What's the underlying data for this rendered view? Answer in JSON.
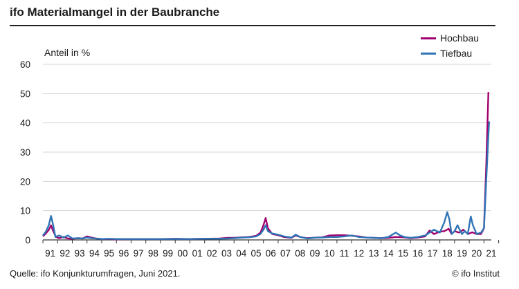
{
  "header": {
    "title": "ifo Materialmangel in der Baubranche"
  },
  "footer": {
    "source": "Quelle: ifo Konjunkturumfragen, Juni 2021.",
    "credit": "© ifo Institut"
  },
  "chart_data": {
    "type": "line",
    "title": "ifo Materialmangel in der Baubranche",
    "ylabel": "Anteil in %",
    "xlabel": "",
    "ylim": [
      0,
      60
    ],
    "xlim": [
      1991.0,
      2021.5
    ],
    "yticks": [
      "0",
      "10",
      "20",
      "30",
      "40",
      "50",
      "60"
    ],
    "yticks_values": [
      0,
      10,
      20,
      30,
      40,
      50,
      60
    ],
    "xticks": [
      "91",
      "92",
      "93",
      "94",
      "95",
      "96",
      "97",
      "98",
      "99",
      "00",
      "01",
      "02",
      "03",
      "04",
      "05",
      "06",
      "07",
      "08",
      "09",
      "10",
      "11",
      "12",
      "13",
      "14",
      "15",
      "16",
      "17",
      "18",
      "19",
      "20",
      "21"
    ],
    "grid": "horizontal",
    "legend_position": "top-right",
    "series": [
      {
        "name": "Hochbau",
        "color": "#a0006e",
        "points": [
          [
            1991.0,
            1.2
          ],
          [
            1991.2,
            2.2
          ],
          [
            1991.4,
            3.4
          ],
          [
            1991.55,
            5.0
          ],
          [
            1991.7,
            3.0
          ],
          [
            1991.9,
            1.0
          ],
          [
            1992.1,
            0.6
          ],
          [
            1992.4,
            1.0
          ],
          [
            1992.7,
            0.5
          ],
          [
            1993.0,
            0.4
          ],
          [
            1993.4,
            0.6
          ],
          [
            1993.7,
            0.5
          ],
          [
            1994.0,
            1.2
          ],
          [
            1994.3,
            0.8
          ],
          [
            1994.6,
            0.5
          ],
          [
            1995.0,
            0.3
          ],
          [
            1995.5,
            0.3
          ],
          [
            1996.0,
            0.2
          ],
          [
            1997.0,
            0.3
          ],
          [
            1998.0,
            0.3
          ],
          [
            1999.0,
            0.3
          ],
          [
            2000.0,
            0.4
          ],
          [
            2001.0,
            0.3
          ],
          [
            2002.0,
            0.4
          ],
          [
            2003.0,
            0.5
          ],
          [
            2003.6,
            0.7
          ],
          [
            2004.0,
            0.7
          ],
          [
            2004.6,
            0.9
          ],
          [
            2005.0,
            1.0
          ],
          [
            2005.5,
            1.4
          ],
          [
            2005.8,
            2.5
          ],
          [
            2006.0,
            5.0
          ],
          [
            2006.15,
            7.5
          ],
          [
            2006.3,
            4.0
          ],
          [
            2006.6,
            2.0
          ],
          [
            2007.0,
            1.6
          ],
          [
            2007.4,
            1.0
          ],
          [
            2007.9,
            0.7
          ],
          [
            2008.2,
            1.5
          ],
          [
            2008.5,
            1.0
          ],
          [
            2009.0,
            0.6
          ],
          [
            2009.6,
            0.8
          ],
          [
            2010.0,
            0.9
          ],
          [
            2010.5,
            1.5
          ],
          [
            2011.0,
            1.6
          ],
          [
            2011.5,
            1.6
          ],
          [
            2012.0,
            1.4
          ],
          [
            2012.5,
            1.2
          ],
          [
            2013.0,
            0.8
          ],
          [
            2013.5,
            0.7
          ],
          [
            2014.0,
            0.6
          ],
          [
            2014.5,
            0.7
          ],
          [
            2015.0,
            1.0
          ],
          [
            2015.5,
            0.9
          ],
          [
            2016.0,
            0.6
          ],
          [
            2016.5,
            0.8
          ],
          [
            2017.0,
            1.2
          ],
          [
            2017.3,
            3.2
          ],
          [
            2017.6,
            2.0
          ],
          [
            2018.0,
            2.8
          ],
          [
            2018.3,
            3.0
          ],
          [
            2018.6,
            3.8
          ],
          [
            2018.8,
            2.0
          ],
          [
            2019.0,
            3.0
          ],
          [
            2019.3,
            2.5
          ],
          [
            2019.6,
            3.5
          ],
          [
            2019.9,
            2.0
          ],
          [
            2020.2,
            2.6
          ],
          [
            2020.5,
            2.0
          ],
          [
            2020.8,
            2.0
          ],
          [
            2021.0,
            4.0
          ],
          [
            2021.15,
            25.0
          ],
          [
            2021.3,
            50.5
          ]
        ]
      },
      {
        "name": "Tiefbau",
        "color": "#2f74b5",
        "points": [
          [
            1991.0,
            1.5
          ],
          [
            1991.2,
            2.8
          ],
          [
            1991.4,
            5.0
          ],
          [
            1991.55,
            8.2
          ],
          [
            1991.7,
            5.0
          ],
          [
            1991.85,
            1.0
          ],
          [
            1992.1,
            1.5
          ],
          [
            1992.4,
            0.8
          ],
          [
            1992.7,
            1.5
          ],
          [
            1993.0,
            0.5
          ],
          [
            1993.4,
            0.6
          ],
          [
            1993.7,
            0.5
          ],
          [
            1994.0,
            0.8
          ],
          [
            1994.3,
            0.6
          ],
          [
            1994.6,
            0.5
          ],
          [
            1995.0,
            0.3
          ],
          [
            1995.5,
            0.4
          ],
          [
            1996.0,
            0.3
          ],
          [
            1997.0,
            0.3
          ],
          [
            1998.0,
            0.3
          ],
          [
            1999.0,
            0.3
          ],
          [
            2000.0,
            0.3
          ],
          [
            2001.0,
            0.3
          ],
          [
            2002.0,
            0.4
          ],
          [
            2003.0,
            0.4
          ],
          [
            2003.6,
            0.5
          ],
          [
            2004.0,
            0.6
          ],
          [
            2004.6,
            0.8
          ],
          [
            2005.0,
            0.9
          ],
          [
            2005.5,
            1.2
          ],
          [
            2005.8,
            2.0
          ],
          [
            2006.0,
            3.5
          ],
          [
            2006.15,
            5.0
          ],
          [
            2006.3,
            3.0
          ],
          [
            2006.6,
            2.2
          ],
          [
            2007.0,
            1.8
          ],
          [
            2007.4,
            1.2
          ],
          [
            2007.9,
            0.8
          ],
          [
            2008.2,
            1.8
          ],
          [
            2008.5,
            1.0
          ],
          [
            2009.0,
            0.5
          ],
          [
            2009.6,
            0.8
          ],
          [
            2010.0,
            0.8
          ],
          [
            2010.5,
            1.0
          ],
          [
            2011.0,
            1.0
          ],
          [
            2011.5,
            1.2
          ],
          [
            2012.0,
            1.5
          ],
          [
            2012.5,
            1.0
          ],
          [
            2013.0,
            0.8
          ],
          [
            2013.5,
            0.7
          ],
          [
            2014.0,
            0.6
          ],
          [
            2014.5,
            1.0
          ],
          [
            2015.0,
            2.5
          ],
          [
            2015.3,
            1.5
          ],
          [
            2015.6,
            1.0
          ],
          [
            2016.0,
            0.7
          ],
          [
            2016.5,
            1.0
          ],
          [
            2017.0,
            1.5
          ],
          [
            2017.3,
            2.5
          ],
          [
            2017.6,
            3.5
          ],
          [
            2018.0,
            2.5
          ],
          [
            2018.3,
            6.0
          ],
          [
            2018.5,
            9.5
          ],
          [
            2018.65,
            7.0
          ],
          [
            2018.8,
            2.0
          ],
          [
            2019.0,
            3.0
          ],
          [
            2019.2,
            5.0
          ],
          [
            2019.5,
            2.0
          ],
          [
            2019.7,
            3.0
          ],
          [
            2019.9,
            2.0
          ],
          [
            2020.1,
            8.0
          ],
          [
            2020.25,
            5.0
          ],
          [
            2020.5,
            2.0
          ],
          [
            2020.8,
            2.5
          ],
          [
            2021.0,
            4.0
          ],
          [
            2021.15,
            20.0
          ],
          [
            2021.35,
            40.5
          ]
        ]
      }
    ]
  }
}
